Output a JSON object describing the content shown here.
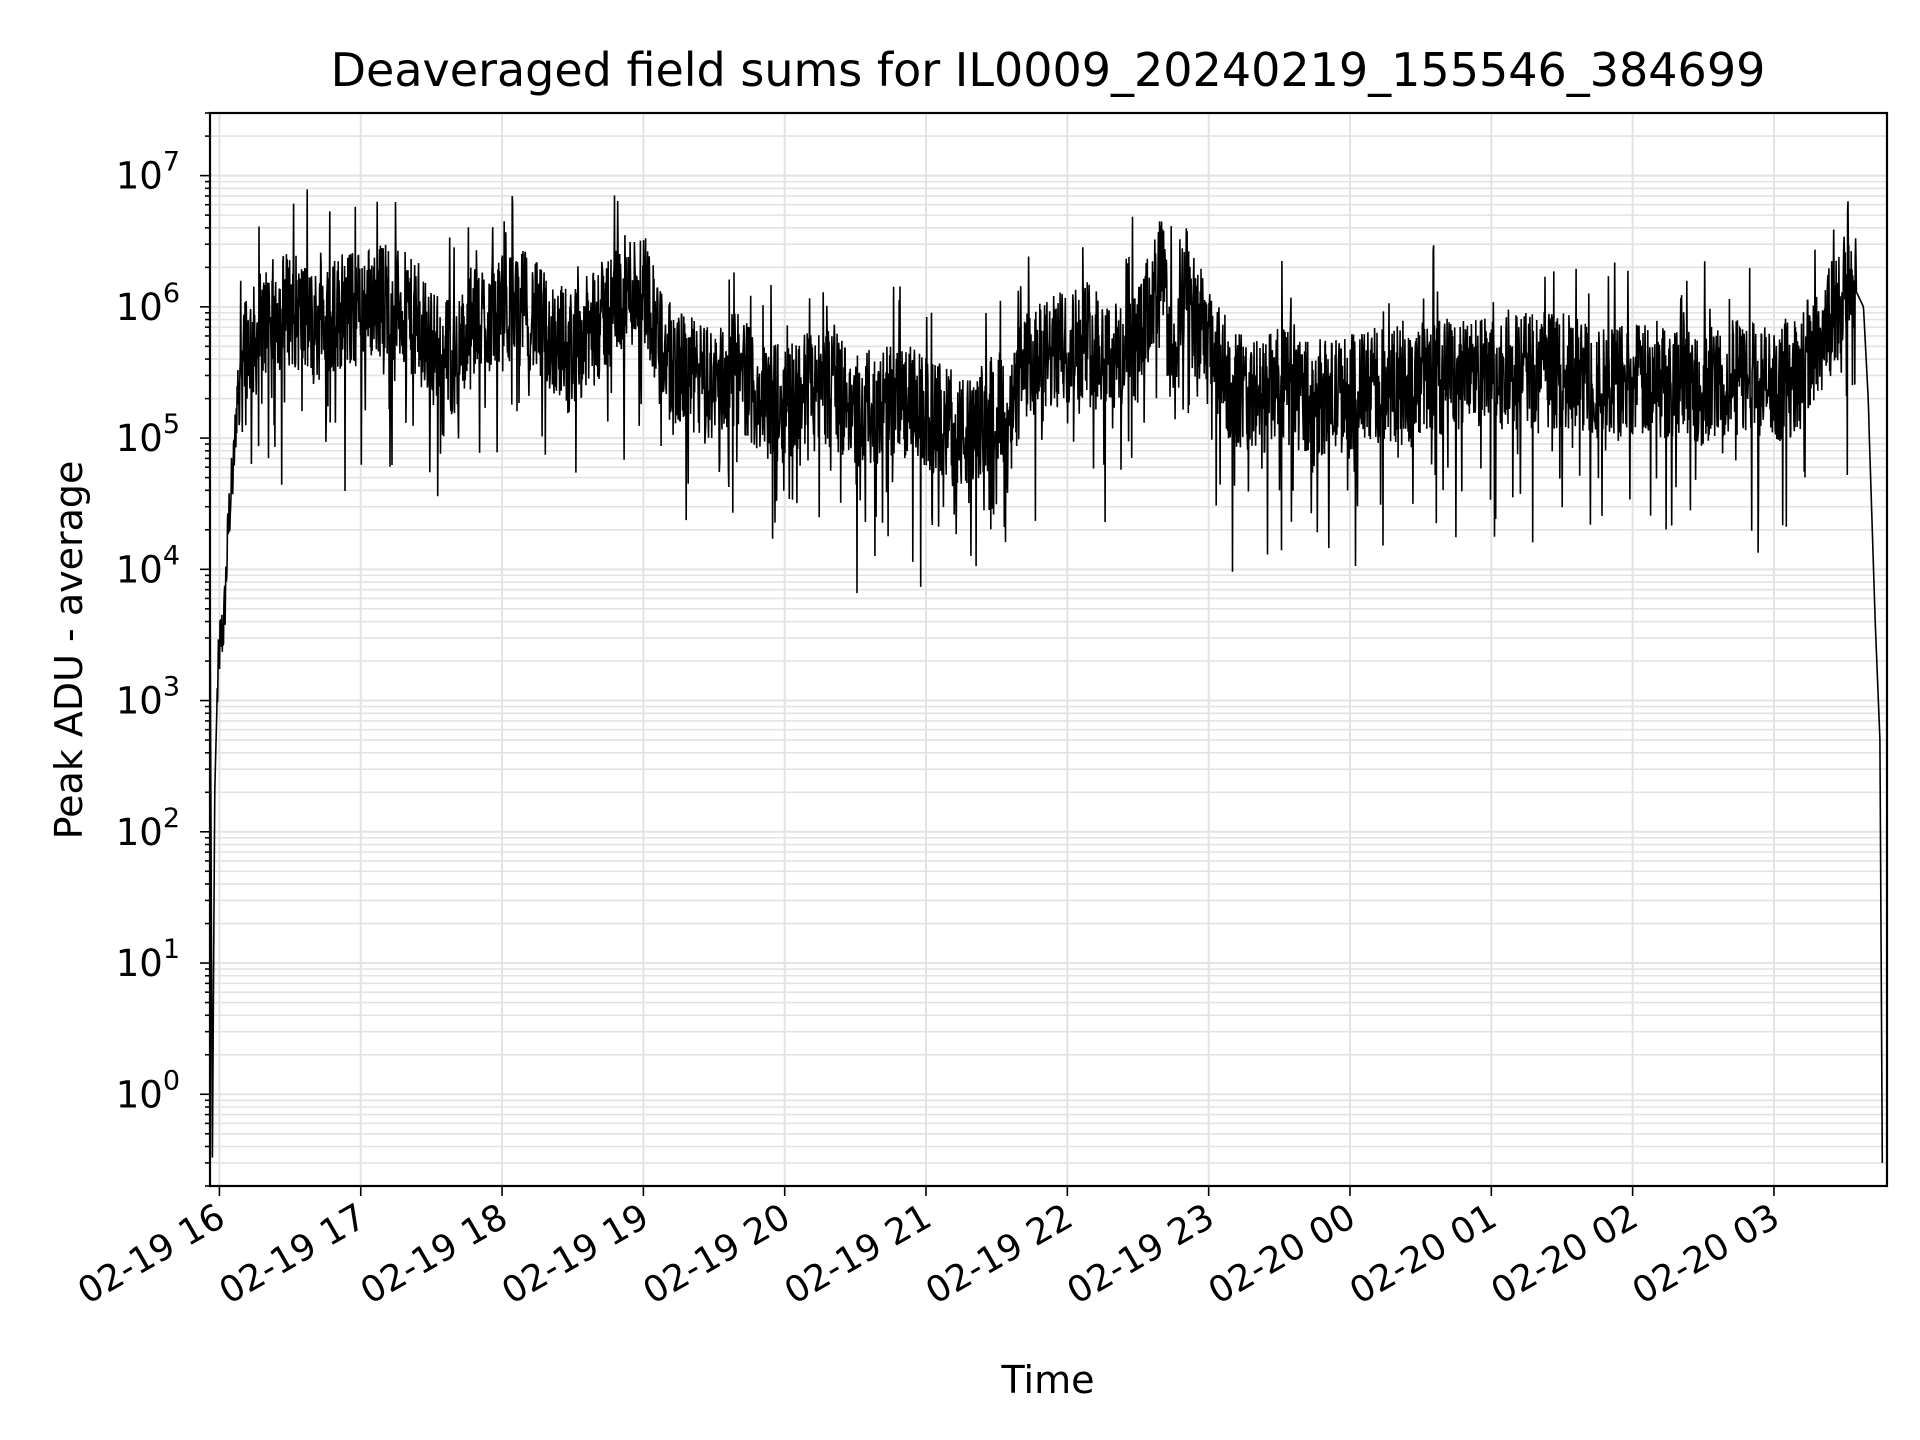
{
  "chart_data": {
    "type": "line",
    "title": "Deaveraged field sums for IL0009_20240219_155546_384699",
    "xlabel": "Time",
    "ylabel": "Peak ADU - average",
    "yscale": "log",
    "ylim": [
      0.2,
      30000000
    ],
    "xlim": [
      "2024-02-19 15:56",
      "2024-02-20 03:48"
    ],
    "grid": true,
    "line_color": "#000000",
    "grid_color": "#e3e3e3",
    "x_tick_labels": [
      "02-19 16",
      "02-19 17",
      "02-19 18",
      "02-19 19",
      "02-19 20",
      "02-19 21",
      "02-19 22",
      "02-19 23",
      "02-20 00",
      "02-20 01",
      "02-20 02",
      "02-20 03"
    ],
    "y_tick_labels": [
      {
        "base": "10",
        "exp": "0"
      },
      {
        "base": "10",
        "exp": "1"
      },
      {
        "base": "10",
        "exp": "2"
      },
      {
        "base": "10",
        "exp": "3"
      },
      {
        "base": "10",
        "exp": "4"
      },
      {
        "base": "10",
        "exp": "5"
      },
      {
        "base": "10",
        "exp": "6"
      },
      {
        "base": "10",
        "exp": "7"
      }
    ],
    "series": [
      {
        "x": [
          "2024-02-19 15:56",
          "2024-02-19 15:57",
          "2024-02-19 15:58",
          "2024-02-19 15:59",
          "2024-02-19 16:00",
          "2024-02-19 16:02",
          "2024-02-19 16:04",
          "2024-02-19 16:06",
          "2024-02-19 16:08",
          "2024-02-19 16:10",
          "2024-02-19 16:14",
          "2024-02-19 16:20",
          "2024-02-19 16:30",
          "2024-02-19 16:40",
          "2024-02-19 16:50",
          "2024-02-19 17:00",
          "2024-02-19 17:10",
          "2024-02-19 17:20",
          "2024-02-19 17:30",
          "2024-02-19 17:40",
          "2024-02-19 17:50",
          "2024-02-19 18:00",
          "2024-02-19 18:10",
          "2024-02-19 18:20",
          "2024-02-19 18:30",
          "2024-02-19 18:40",
          "2024-02-19 18:50",
          "2024-02-19 19:00",
          "2024-02-19 19:10",
          "2024-02-19 19:20",
          "2024-02-19 19:30",
          "2024-02-19 19:40",
          "2024-02-19 19:50",
          "2024-02-19 20:00",
          "2024-02-19 20:10",
          "2024-02-19 20:20",
          "2024-02-19 20:30",
          "2024-02-19 20:40",
          "2024-02-19 20:50",
          "2024-02-19 21:00",
          "2024-02-19 21:10",
          "2024-02-19 21:20",
          "2024-02-19 21:30",
          "2024-02-19 21:35",
          "2024-02-19 21:40",
          "2024-02-19 21:50",
          "2024-02-19 22:00",
          "2024-02-19 22:10",
          "2024-02-19 22:20",
          "2024-02-19 22:30",
          "2024-02-19 22:40",
          "2024-02-19 22:45",
          "2024-02-19 22:50",
          "2024-02-19 23:00",
          "2024-02-19 23:10",
          "2024-02-19 23:20",
          "2024-02-19 23:30",
          "2024-02-19 23:40",
          "2024-02-19 23:50",
          "2024-02-20 00:00",
          "2024-02-20 00:10",
          "2024-02-20 00:20",
          "2024-02-20 00:30",
          "2024-02-20 00:40",
          "2024-02-20 00:50",
          "2024-02-20 01:00",
          "2024-02-20 01:10",
          "2024-02-20 01:20",
          "2024-02-20 01:30",
          "2024-02-20 01:40",
          "2024-02-20 01:50",
          "2024-02-20 02:00",
          "2024-02-20 02:10",
          "2024-02-20 02:20",
          "2024-02-20 02:30",
          "2024-02-20 02:40",
          "2024-02-20 02:50",
          "2024-02-20 03:00",
          "2024-02-20 03:10",
          "2024-02-20 03:20",
          "2024-02-20 03:30",
          "2024-02-20 03:35",
          "2024-02-20 03:38",
          "2024-02-20 03:40",
          "2024-02-20 03:43",
          "2024-02-20 03:45",
          "2024-02-20 03:46"
        ],
        "y": [
          8000,
          0.3,
          200,
          1000,
          2500,
          4000,
          25000,
          60000,
          300000,
          600000,
          500000,
          800000,
          1000000,
          700000,
          900000,
          1000000,
          1200000,
          900000,
          500000,
          400000,
          800000,
          900000,
          1000000,
          600000,
          500000,
          700000,
          1200000,
          1500000,
          400000,
          300000,
          250000,
          350000,
          200000,
          180000,
          250000,
          250000,
          150000,
          180000,
          200000,
          150000,
          120000,
          100000,
          200000,
          100000,
          300000,
          400000,
          500000,
          600000,
          400000,
          500000,
          2000000,
          300000,
          1500000,
          500000,
          250000,
          200000,
          250000,
          220000,
          200000,
          220000,
          250000,
          250000,
          280000,
          300000,
          320000,
          300000,
          300000,
          350000,
          320000,
          300000,
          250000,
          280000,
          250000,
          300000,
          250000,
          280000,
          300000,
          250000,
          300000,
          600000,
          1200000,
          1300000,
          1000000,
          200000,
          4000,
          500,
          0.3
        ],
        "noise": "black jagged line with dense high-frequency fluctuations between about 1e5 and 3e6 across most of the time range"
      }
    ]
  }
}
